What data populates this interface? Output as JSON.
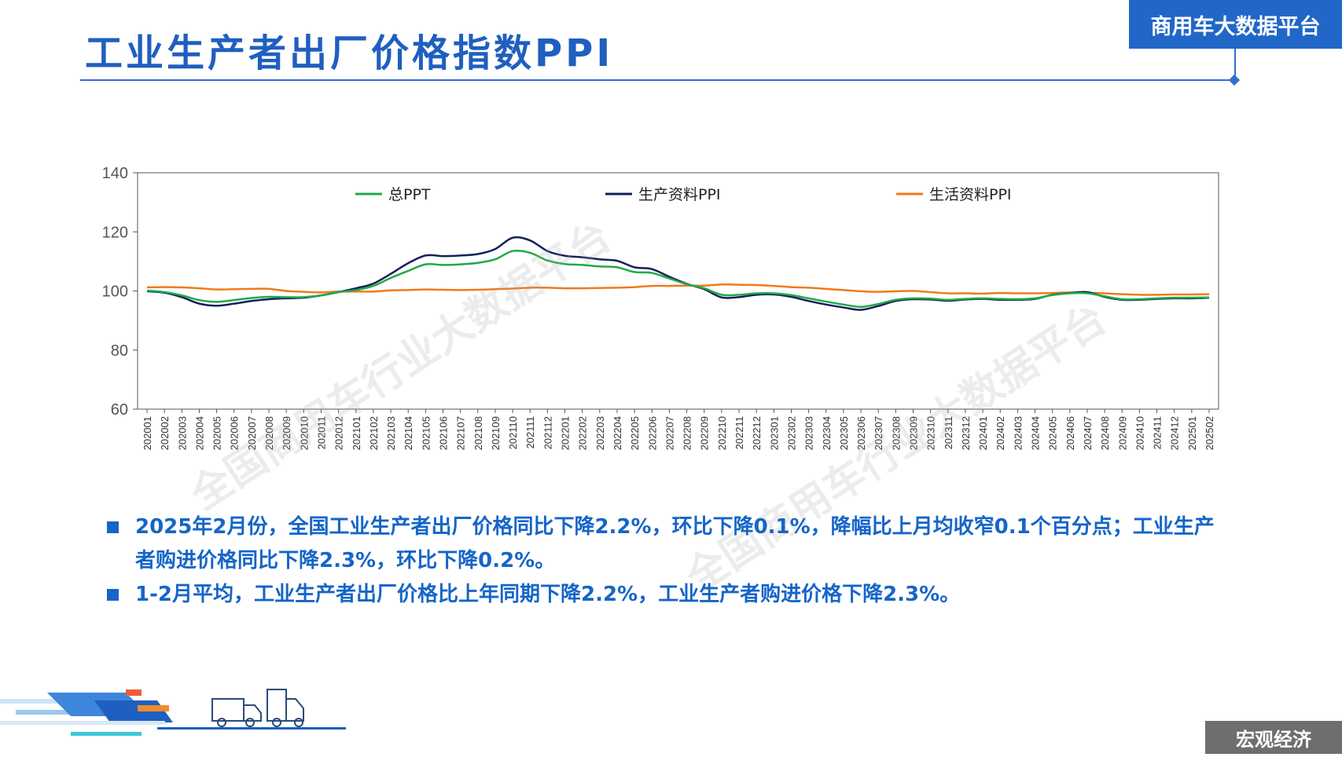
{
  "header": {
    "title": "工业生产者出厂价格指数PPI",
    "brand": "商用车大数据平台"
  },
  "footer": {
    "section_tag": "宏观经济"
  },
  "watermark": {
    "text": "全国商用车行业大数据平台"
  },
  "bullets": [
    "2025年2月份，全国工业生产者出厂价格同比下降2.2%，环比下降0.1%，降幅比上月均收窄0.1个百分点；工业生产者购进价格同比下降2.3%，环比下降0.2%。",
    "1-2月平均，工业生产者出厂价格比上年同期下降2.2%，工业生产者购进价格下降2.3%。"
  ],
  "colors": {
    "accent": "#1f5fbf",
    "series_total": "#22a84a",
    "series_production": "#13215a",
    "series_living": "#f07a1c"
  },
  "chart_data": {
    "type": "line",
    "ylim": [
      60,
      140
    ],
    "yticks": [
      60,
      80,
      100,
      120,
      140
    ],
    "legend_position": "top",
    "grid": false,
    "categories": [
      "202001",
      "202002",
      "202003",
      "202004",
      "202005",
      "202006",
      "202007",
      "202008",
      "202009",
      "202010",
      "202011",
      "202012",
      "202101",
      "202102",
      "202103",
      "202104",
      "202105",
      "202106",
      "202107",
      "202108",
      "202109",
      "202110",
      "202111",
      "202112",
      "202201",
      "202202",
      "202203",
      "202204",
      "202205",
      "202206",
      "202207",
      "202208",
      "202209",
      "202210",
      "202211",
      "202212",
      "202301",
      "202302",
      "202303",
      "202304",
      "202305",
      "202306",
      "202307",
      "202308",
      "202309",
      "202310",
      "202311",
      "202312",
      "202401",
      "202402",
      "202403",
      "202404",
      "202405",
      "202406",
      "202407",
      "202408",
      "202409",
      "202410",
      "202411",
      "202412",
      "202501",
      "202502"
    ],
    "series": [
      {
        "name": "总PPT",
        "color": "#22a84a",
        "values": [
          100.1,
          99.6,
          98.5,
          96.9,
          96.3,
          96.9,
          97.6,
          98.0,
          97.9,
          97.9,
          98.5,
          99.6,
          100.3,
          101.7,
          104.4,
          106.8,
          109.0,
          108.8,
          109.0,
          109.5,
          110.7,
          113.5,
          112.9,
          110.3,
          109.1,
          108.8,
          108.3,
          108.0,
          106.4,
          106.1,
          104.2,
          102.3,
          100.9,
          98.7,
          98.7,
          99.2,
          99.2,
          98.6,
          97.5,
          96.4,
          95.4,
          94.6,
          95.6,
          97.0,
          97.5,
          97.4,
          97.0,
          97.3,
          97.5,
          97.3,
          97.2,
          97.5,
          98.6,
          99.2,
          99.2,
          98.2,
          97.2,
          97.2,
          97.5,
          97.7,
          97.7,
          97.8
        ]
      },
      {
        "name": "生产资料PPI",
        "color": "#13215a",
        "values": [
          99.9,
          99.4,
          97.9,
          95.7,
          95.0,
          95.7,
          96.6,
          97.2,
          97.5,
          97.7,
          98.5,
          99.6,
          100.9,
          102.5,
          105.8,
          109.4,
          112.0,
          111.8,
          112.0,
          112.5,
          114.2,
          118.0,
          117.1,
          113.5,
          111.9,
          111.4,
          110.7,
          110.2,
          108.0,
          107.4,
          104.8,
          102.4,
          100.6,
          97.8,
          97.9,
          98.7,
          98.8,
          98.0,
          96.6,
          95.4,
          94.4,
          93.6,
          94.9,
          96.6,
          97.2,
          97.1,
          96.7,
          97.1,
          97.3,
          97.0,
          97.0,
          97.3,
          98.7,
          99.3,
          99.6,
          98.0,
          97.0,
          97.0,
          97.3,
          97.5,
          97.5,
          97.7
        ]
      },
      {
        "name": "生活资料PPI",
        "color": "#f07a1c",
        "values": [
          101.2,
          101.3,
          101.2,
          100.9,
          100.5,
          100.6,
          100.7,
          100.7,
          100.0,
          99.7,
          99.5,
          99.8,
          99.8,
          99.8,
          100.2,
          100.3,
          100.5,
          100.4,
          100.3,
          100.4,
          100.6,
          100.8,
          101.1,
          101.1,
          100.9,
          100.9,
          101.0,
          101.1,
          101.3,
          101.7,
          101.7,
          101.8,
          101.8,
          102.2,
          102.1,
          102.0,
          101.7,
          101.3,
          101.1,
          100.7,
          100.3,
          99.9,
          99.7,
          99.9,
          100.0,
          99.6,
          99.2,
          99.2,
          99.1,
          99.3,
          99.2,
          99.2,
          99.3,
          99.5,
          99.4,
          99.2,
          98.9,
          98.7,
          98.7,
          98.8,
          98.8,
          98.9
        ]
      }
    ]
  }
}
